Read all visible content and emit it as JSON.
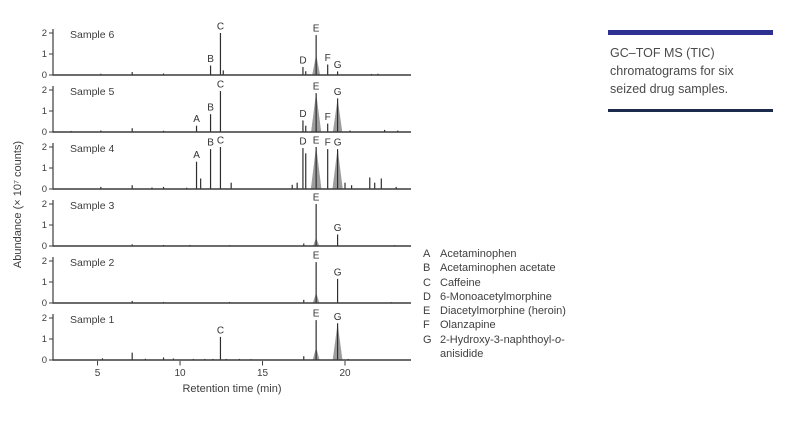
{
  "caption": {
    "text": "GC–TOF MS (TIC) chromatograms for six seized drug samples.",
    "accent_top_color": "#2e3192",
    "accent_bottom_color": "#1c2b4c"
  },
  "legend": {
    "items": [
      {
        "letter": "A",
        "name_segments": [
          {
            "text": "Acetaminophen"
          }
        ]
      },
      {
        "letter": "B",
        "name_segments": [
          {
            "text": "Acetaminophen acetate"
          }
        ]
      },
      {
        "letter": "C",
        "name_segments": [
          {
            "text": "Caffeine"
          }
        ]
      },
      {
        "letter": "D",
        "name_segments": [
          {
            "text": "6-Monoacetylmorphine"
          }
        ]
      },
      {
        "letter": "E",
        "name_segments": [
          {
            "text": "Diacetylmorphine (heroin)"
          }
        ]
      },
      {
        "letter": "F",
        "name_segments": [
          {
            "text": "Olanzapine"
          }
        ]
      },
      {
        "letter": "G",
        "name_segments": [
          {
            "text": "2-Hydroxy-3-naphthoyl-"
          },
          {
            "text": "o",
            "italic": true
          },
          {
            "text": "-anisidide"
          }
        ]
      }
    ]
  },
  "chart_data": {
    "type": "line",
    "title": "GC–TOF MS (TIC) chromatograms for six seized drug samples.",
    "xlabel": "Retention time (min)",
    "ylabel": "Abundance (× 10⁷ counts)",
    "xlim": [
      2.3,
      24
    ],
    "ylim_per_panel": [
      0,
      2.2
    ],
    "x_ticks": [
      5,
      10,
      15,
      20
    ],
    "y_ticks": [
      2,
      1,
      0
    ],
    "grid": false,
    "legend_position": "right",
    "peak_color": "#2e2e2e",
    "gray_peak_color": "#9c9c9c",
    "axis_color": "#3c3c3c",
    "text_color": "#3d3d3d",
    "panels": [
      {
        "name": "Sample 6",
        "peaks": [
          {
            "rt": 5.2,
            "height": 0.06
          },
          {
            "rt": 7.1,
            "height": 0.14
          },
          {
            "rt": 9.0,
            "height": 0.07
          },
          {
            "rt": 11.85,
            "height": 0.45,
            "label": "B"
          },
          {
            "rt": 12.45,
            "height": 2.0,
            "label": "C"
          },
          {
            "rt": 12.62,
            "height": 0.22
          },
          {
            "rt": 17.45,
            "height": 0.38,
            "label": "D"
          },
          {
            "rt": 17.62,
            "height": 0.18
          },
          {
            "rt": 18.25,
            "height": 1.9,
            "label": "E",
            "gray_height": 0.9
          },
          {
            "rt": 18.95,
            "height": 0.5,
            "label": "F"
          },
          {
            "rt": 19.55,
            "height": 0.17,
            "label": "G"
          },
          {
            "rt": 21.6,
            "height": 0.05
          },
          {
            "rt": 22.0,
            "height": 0.06
          }
        ]
      },
      {
        "name": "Sample 5",
        "peaks": [
          {
            "rt": 3.4,
            "height": 0.05
          },
          {
            "rt": 5.2,
            "height": 0.07
          },
          {
            "rt": 7.1,
            "height": 0.18
          },
          {
            "rt": 9.0,
            "height": 0.06
          },
          {
            "rt": 11.0,
            "height": 0.3,
            "label": "A"
          },
          {
            "rt": 11.85,
            "height": 0.85,
            "label": "B"
          },
          {
            "rt": 12.45,
            "height": 1.95,
            "label": "C"
          },
          {
            "rt": 17.45,
            "height": 0.55,
            "label": "D"
          },
          {
            "rt": 17.62,
            "height": 0.3
          },
          {
            "rt": 18.25,
            "height": 1.85,
            "label": "E",
            "gray_height": 1.78
          },
          {
            "rt": 18.95,
            "height": 0.4,
            "label": "F"
          },
          {
            "rt": 19.55,
            "height": 1.6,
            "label": "G",
            "gray_height": 1.5
          },
          {
            "rt": 20.3,
            "height": 0.07
          },
          {
            "rt": 22.4,
            "height": 0.1
          },
          {
            "rt": 23.2,
            "height": 0.07
          }
        ]
      },
      {
        "name": "Sample 4",
        "peaks": [
          {
            "rt": 5.2,
            "height": 0.1
          },
          {
            "rt": 7.1,
            "height": 0.18
          },
          {
            "rt": 8.3,
            "height": 0.07
          },
          {
            "rt": 9.0,
            "height": 0.1
          },
          {
            "rt": 10.4,
            "height": 0.06
          },
          {
            "rt": 11.0,
            "height": 1.3,
            "label": "A"
          },
          {
            "rt": 11.25,
            "height": 0.5
          },
          {
            "rt": 11.85,
            "height": 1.9,
            "label": "B"
          },
          {
            "rt": 12.45,
            "height": 2.0,
            "label": "C"
          },
          {
            "rt": 13.1,
            "height": 0.3
          },
          {
            "rt": 16.8,
            "height": 0.2
          },
          {
            "rt": 17.1,
            "height": 0.3
          },
          {
            "rt": 17.45,
            "height": 1.95,
            "label": "D"
          },
          {
            "rt": 17.62,
            "height": 1.7
          },
          {
            "rt": 18.25,
            "height": 2.0,
            "label": "E",
            "gray_height": 1.95
          },
          {
            "rt": 18.95,
            "height": 1.9,
            "label": "F"
          },
          {
            "rt": 19.55,
            "height": 1.9,
            "label": "G",
            "gray_height": 1.85
          },
          {
            "rt": 20.0,
            "height": 0.3
          },
          {
            "rt": 20.4,
            "height": 0.18
          },
          {
            "rt": 21.5,
            "height": 0.55
          },
          {
            "rt": 21.8,
            "height": 0.3
          },
          {
            "rt": 22.2,
            "height": 0.5
          },
          {
            "rt": 23.1,
            "height": 0.1
          }
        ]
      },
      {
        "name": "Sample 3",
        "peaks": [
          {
            "rt": 7.1,
            "height": 0.08
          },
          {
            "rt": 9.0,
            "height": 0.05
          },
          {
            "rt": 10.6,
            "height": 0.05
          },
          {
            "rt": 13.0,
            "height": 0.04
          },
          {
            "rt": 17.5,
            "height": 0.12
          },
          {
            "rt": 18.25,
            "height": 2.0,
            "label": "E",
            "gray_height": 0.35
          },
          {
            "rt": 19.55,
            "height": 0.55,
            "label": "G"
          },
          {
            "rt": 23.0,
            "height": 0.04
          }
        ]
      },
      {
        "name": "Sample 2",
        "peaks": [
          {
            "rt": 7.1,
            "height": 0.1
          },
          {
            "rt": 9.0,
            "height": 0.05
          },
          {
            "rt": 13.0,
            "height": 0.05
          },
          {
            "rt": 17.5,
            "height": 0.15
          },
          {
            "rt": 18.25,
            "height": 1.95,
            "label": "E",
            "gray_height": 0.45
          },
          {
            "rt": 19.55,
            "height": 1.15,
            "label": "G"
          },
          {
            "rt": 22.8,
            "height": 0.04
          }
        ]
      },
      {
        "name": "Sample 1",
        "peaks": [
          {
            "rt": 5.3,
            "height": 0.08
          },
          {
            "rt": 7.1,
            "height": 0.35
          },
          {
            "rt": 7.9,
            "height": 0.06
          },
          {
            "rt": 9.0,
            "height": 0.12
          },
          {
            "rt": 9.6,
            "height": 0.07
          },
          {
            "rt": 10.8,
            "height": 0.05
          },
          {
            "rt": 11.5,
            "height": 0.05
          },
          {
            "rt": 12.0,
            "height": 0.05
          },
          {
            "rt": 12.45,
            "height": 1.1,
            "label": "C"
          },
          {
            "rt": 12.8,
            "height": 0.05
          },
          {
            "rt": 13.6,
            "height": 0.05
          },
          {
            "rt": 14.3,
            "height": 0.04
          },
          {
            "rt": 17.5,
            "height": 0.18
          },
          {
            "rt": 18.25,
            "height": 1.9,
            "label": "E",
            "gray_height": 0.55
          },
          {
            "rt": 19.55,
            "height": 1.75,
            "label": "G",
            "gray_height": 1.65
          },
          {
            "rt": 20.2,
            "height": 0.05
          }
        ]
      }
    ]
  }
}
